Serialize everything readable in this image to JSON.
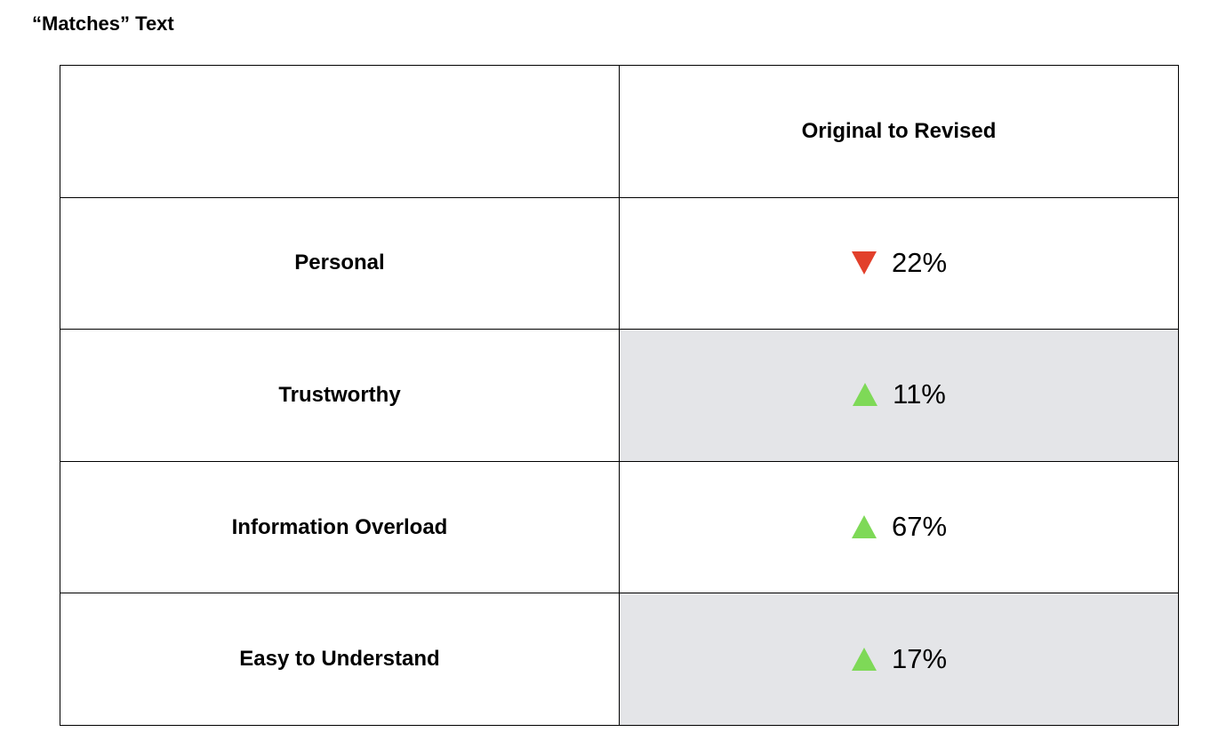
{
  "header": {
    "title": "“Matches” Text"
  },
  "table": {
    "column_header": "Original to Revised",
    "rows": [
      {
        "label": "Personal",
        "change": "22%",
        "direction": "down",
        "shaded": false
      },
      {
        "label": "Trustworthy",
        "change": "11%",
        "direction": "up",
        "shaded": true
      },
      {
        "label": "Information Overload",
        "change": "67%",
        "direction": "up",
        "shaded": false
      },
      {
        "label": "Easy to Understand",
        "change": "17%",
        "direction": "up",
        "shaded": true
      }
    ]
  }
}
